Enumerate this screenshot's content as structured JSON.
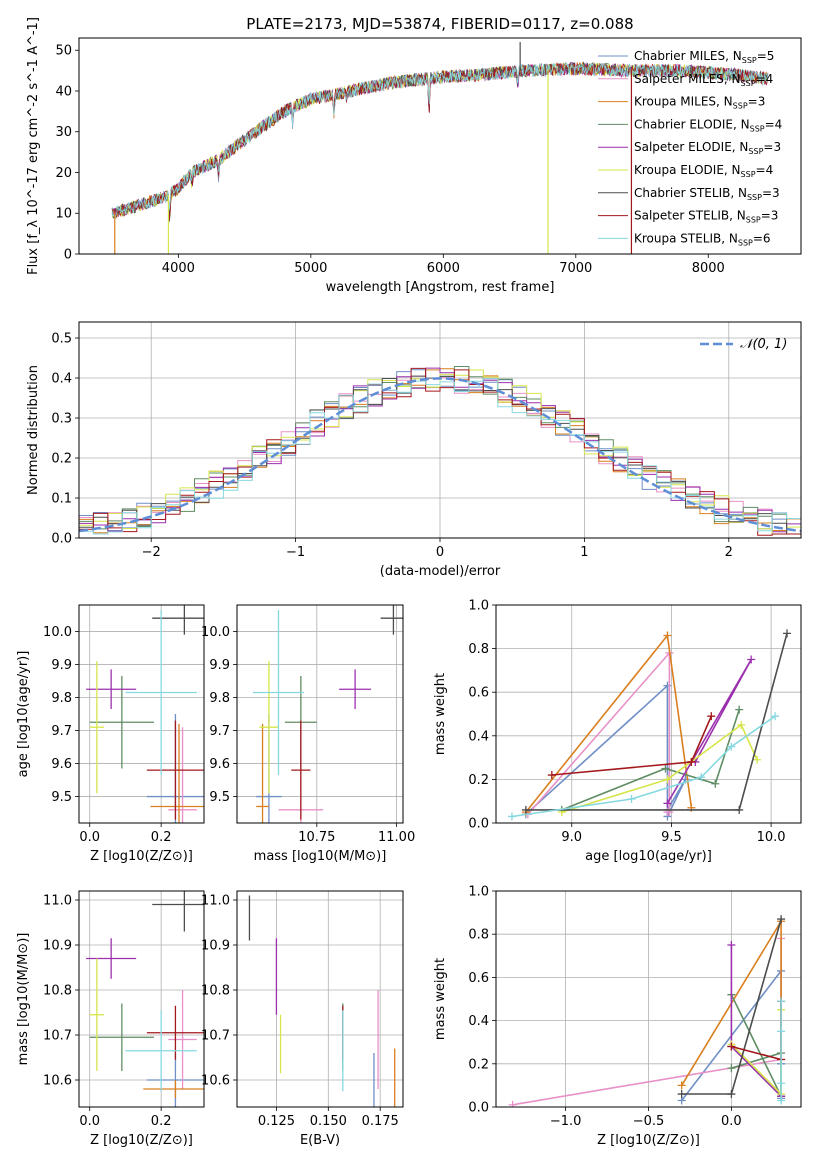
{
  "figure_title": "PLATE=2173, MJD=53874, FIBERID=0117, z=0.088",
  "models": [
    {
      "name": "Chabrier MILES",
      "nssp": "5",
      "color": "#6f8fc6"
    },
    {
      "name": "Salpeter MILES",
      "nssp": "4",
      "color": "#e891c8"
    },
    {
      "name": "Kroupa MILES",
      "nssp": "3",
      "color": "#d97f1e"
    },
    {
      "name": "Chabrier ELODIE",
      "nssp": "4",
      "color": "#5f8d63"
    },
    {
      "name": "Salpeter ELODIE",
      "nssp": "3",
      "color": "#9b2fae"
    },
    {
      "name": "Kroupa ELODIE",
      "nssp": "4",
      "color": "#d6e64a"
    },
    {
      "name": "Chabrier STELIB",
      "nssp": "3",
      "color": "#4d4d4d"
    },
    {
      "name": "Salpeter STELIB",
      "nssp": "3",
      "color": "#a3181c"
    },
    {
      "name": "Kroupa STELIB",
      "nssp": "6",
      "color": "#86d8e0"
    }
  ],
  "chart_data": [
    {
      "id": "spectrum",
      "type": "line",
      "xlabel": "wavelength [Angstrom, rest frame]",
      "ylabel": "Flux [f_λ 10^-17 erg cm^-2 s^-1 A^-1]",
      "xlim": [
        3250,
        8700
      ],
      "ylim": [
        0,
        53
      ],
      "xticks": [
        4000,
        5000,
        6000,
        7000,
        8000
      ],
      "yticks": [
        0,
        10,
        20,
        30,
        40,
        50
      ],
      "grid": false,
      "legend_position": "top-right",
      "continuum": {
        "x": [
          3500,
          3700,
          3900,
          4000,
          4100,
          4300,
          4500,
          4800,
          5000,
          5300,
          5600,
          6000,
          6300,
          6600,
          7000,
          7400,
          7800,
          8200,
          8450
        ],
        "y": [
          10,
          12,
          14,
          16,
          20,
          23,
          28,
          35,
          38,
          40,
          42,
          43.5,
          44,
          45,
          45.5,
          45,
          45,
          44,
          43
        ]
      },
      "absorption_lines": [
        {
          "x": 3934,
          "depth": 6
        },
        {
          "x": 4102,
          "depth": 3
        },
        {
          "x": 4304,
          "depth": 4
        },
        {
          "x": 4862,
          "depth": 4
        },
        {
          "x": 5175,
          "depth": 5
        },
        {
          "x": 5270,
          "depth": 2
        },
        {
          "x": 5892,
          "depth": 8
        },
        {
          "x": 6563,
          "depth": 3
        }
      ],
      "spikes": [
        {
          "model": 5,
          "x": 3925,
          "to": 0
        },
        {
          "model": 5,
          "x": 6790,
          "to": 0
        },
        {
          "model": 7,
          "x": 7420,
          "to": 0
        },
        {
          "model": 2,
          "x": 3520,
          "to": 0
        },
        {
          "model": 6,
          "x": 6580,
          "to": 52
        }
      ]
    },
    {
      "id": "residuals",
      "type": "histogram",
      "xlabel": "(data-model)/error",
      "ylabel": "Normed distribution",
      "xlim": [
        -2.5,
        2.5
      ],
      "ylim": [
        0,
        0.54
      ],
      "xticks": [
        -2,
        -1,
        0,
        1,
        2
      ],
      "yticks": [
        0.0,
        0.1,
        0.2,
        0.3,
        0.4,
        0.5
      ],
      "grid": true,
      "legend": "N(0,1)",
      "legend_position": "top-right",
      "bin_width": 0.1,
      "reference_curve": {
        "name": "N(0,1)",
        "mean": 0,
        "sigma": 1,
        "color": "#5e8ed6"
      }
    },
    {
      "id": "age-vs-Z",
      "type": "errorbar",
      "xlabel": "Z [log10(Z/Z⊙)]",
      "ylabel": "age [log10(age/yr)]",
      "xlim": [
        -0.03,
        0.32
      ],
      "ylim": [
        9.42,
        10.08
      ],
      "xticks": [
        0.0,
        0.2
      ],
      "yticks": [
        9.5,
        9.6,
        9.7,
        9.8,
        9.9,
        10.0
      ],
      "grid": true,
      "points": [
        {
          "model": 0,
          "x": 0.24,
          "xerr": 0.08,
          "y": 9.5,
          "yerr": 0.25
        },
        {
          "model": 1,
          "x": 0.26,
          "xerr": 0.04,
          "y": 9.46,
          "yerr": 0.25
        },
        {
          "model": 2,
          "x": 0.25,
          "xerr": 0.08,
          "y": 9.47,
          "yerr": 0.25
        },
        {
          "model": 3,
          "x": 0.09,
          "xerr": 0.09,
          "y": 9.725,
          "yerr": 0.14
        },
        {
          "model": 4,
          "x": 0.06,
          "xerr": 0.07,
          "y": 9.825,
          "yerr": 0.06
        },
        {
          "model": 5,
          "x": 0.02,
          "xerr": 0.02,
          "y": 9.71,
          "yerr": 0.2
        },
        {
          "model": 6,
          "x": 0.265,
          "xerr": 0.09,
          "y": 10.04,
          "yerr": 0.05
        },
        {
          "model": 7,
          "x": 0.24,
          "xerr": 0.08,
          "y": 9.58,
          "yerr": 0.15
        },
        {
          "model": 8,
          "x": 0.2,
          "xerr": 0.1,
          "y": 9.815,
          "yerr": 0.25
        }
      ]
    },
    {
      "id": "age-vs-mass",
      "type": "errorbar",
      "xlabel": "mass [log10(M/M⊙)]",
      "ylabel": "",
      "xlim": [
        10.5,
        11.02
      ],
      "ylim": [
        9.42,
        10.08
      ],
      "xticks": [
        10.75,
        11.0
      ],
      "yticks": [
        9.5,
        9.6,
        9.7,
        9.8,
        9.9,
        10.0
      ],
      "grid": true,
      "points": [
        {
          "model": 0,
          "x": 10.6,
          "xerr": 0.04,
          "y": 9.5,
          "yerr": 0.25
        },
        {
          "model": 1,
          "x": 10.7,
          "xerr": 0.07,
          "y": 9.46,
          "yerr": 0.25
        },
        {
          "model": 2,
          "x": 10.58,
          "xerr": 0.02,
          "y": 9.47,
          "yerr": 0.25
        },
        {
          "model": 3,
          "x": 10.7,
          "xerr": 0.05,
          "y": 9.725,
          "yerr": 0.14
        },
        {
          "model": 4,
          "x": 10.87,
          "xerr": 0.05,
          "y": 9.825,
          "yerr": 0.06
        },
        {
          "model": 5,
          "x": 10.6,
          "xerr": 0.03,
          "y": 9.71,
          "yerr": 0.2
        },
        {
          "model": 6,
          "x": 10.99,
          "xerr": 0.04,
          "y": 10.04,
          "yerr": 0.05
        },
        {
          "model": 7,
          "x": 10.7,
          "xerr": 0.03,
          "y": 9.58,
          "yerr": 0.15
        },
        {
          "model": 8,
          "x": 10.63,
          "xerr": 0.08,
          "y": 9.815,
          "yerr": 0.25
        }
      ]
    },
    {
      "id": "weight-vs-age",
      "type": "line",
      "xlabel": "age [log10(age/yr)]",
      "ylabel": "mass weight",
      "xlim": [
        8.62,
        10.15
      ],
      "ylim": [
        0,
        1.0
      ],
      "xticks": [
        9.0,
        9.5,
        10.0
      ],
      "yticks": [
        0.0,
        0.2,
        0.4,
        0.6,
        0.8,
        1.0
      ],
      "grid": true,
      "series": [
        {
          "model": 0,
          "x": [
            8.77,
            9.48,
            9.48,
            9.57,
            9.48
          ],
          "y": [
            0.04,
            0.63,
            0.03,
            0.2,
            0.06
          ]
        },
        {
          "model": 1,
          "x": [
            8.78,
            9.49,
            9.49,
            9.48
          ],
          "y": [
            0.04,
            0.78,
            0.05,
            0.05
          ]
        },
        {
          "model": 2,
          "x": [
            8.77,
            9.48,
            9.6
          ],
          "y": [
            0.05,
            0.86,
            0.07
          ]
        },
        {
          "model": 3,
          "x": [
            8.95,
            9.47,
            9.72,
            9.84
          ],
          "y": [
            0.06,
            0.25,
            0.18,
            0.52
          ]
        },
        {
          "model": 4,
          "x": [
            9.48,
            9.9,
            9.62
          ],
          "y": [
            0.09,
            0.75,
            0.28
          ]
        },
        {
          "model": 5,
          "x": [
            8.95,
            9.48,
            9.85,
            9.93
          ],
          "y": [
            0.05,
            0.2,
            0.45,
            0.29
          ]
        },
        {
          "model": 6,
          "x": [
            8.77,
            9.84,
            10.08
          ],
          "y": [
            0.06,
            0.06,
            0.87
          ]
        },
        {
          "model": 7,
          "x": [
            8.9,
            9.6,
            9.7,
            9.6
          ],
          "y": [
            0.22,
            0.28,
            0.49,
            0.28
          ]
        },
        {
          "model": 8,
          "x": [
            8.7,
            9.3,
            9.65,
            9.8,
            10.02
          ],
          "y": [
            0.03,
            0.11,
            0.21,
            0.35,
            0.49
          ]
        }
      ]
    },
    {
      "id": "mass-vs-Z",
      "type": "errorbar",
      "xlabel": "Z [log10(Z/Z⊙)]",
      "ylabel": "mass [log10(M/M⊙)]",
      "xlim": [
        -0.03,
        0.32
      ],
      "ylim": [
        10.54,
        11.02
      ],
      "xticks": [
        0.0,
        0.2
      ],
      "yticks": [
        10.6,
        10.7,
        10.8,
        10.9,
        11.0
      ],
      "grid": true,
      "points": [
        {
          "model": 0,
          "x": 0.24,
          "xerr": 0.08,
          "y": 10.6,
          "yerr": 0.06
        },
        {
          "model": 1,
          "x": 0.26,
          "xerr": 0.04,
          "y": 10.69,
          "yerr": 0.11
        },
        {
          "model": 2,
          "x": 0.24,
          "xerr": 0.09,
          "y": 10.58,
          "yerr": 0.02
        },
        {
          "model": 3,
          "x": 0.09,
          "xerr": 0.09,
          "y": 10.695,
          "yerr": 0.075
        },
        {
          "model": 4,
          "x": 0.06,
          "xerr": 0.07,
          "y": 10.87,
          "yerr": 0.045
        },
        {
          "model": 5,
          "x": 0.02,
          "xerr": 0.02,
          "y": 10.745,
          "yerr": 0.125
        },
        {
          "model": 6,
          "x": 0.265,
          "xerr": 0.09,
          "y": 10.99,
          "yerr": 0.06
        },
        {
          "model": 7,
          "x": 0.24,
          "xerr": 0.08,
          "y": 10.705,
          "yerr": 0.06
        },
        {
          "model": 8,
          "x": 0.2,
          "xerr": 0.1,
          "y": 10.665,
          "yerr": 0.09
        }
      ]
    },
    {
      "id": "mass-vs-ebv",
      "type": "errorbar",
      "xlabel": "E(B-V)",
      "ylabel": "",
      "xlim": [
        0.106,
        0.186
      ],
      "ylim": [
        10.54,
        11.02
      ],
      "xticks": [
        0.125,
        0.15,
        0.175
      ],
      "yticks": [
        10.6,
        10.7,
        10.8,
        10.9,
        11.0
      ],
      "grid": true,
      "points": [
        {
          "model": 0,
          "x": 0.172,
          "xerr": 0,
          "y": 10.6,
          "yerr": 0.06
        },
        {
          "model": 1,
          "x": 0.174,
          "xerr": 0,
          "y": 10.69,
          "yerr": 0.11
        },
        {
          "model": 2,
          "x": 0.182,
          "xerr": 0,
          "y": 10.6,
          "yerr": 0.07
        },
        {
          "model": 3,
          "x": 0.157,
          "xerr": 0,
          "y": 10.695,
          "yerr": 0.075
        },
        {
          "model": 4,
          "x": 0.125,
          "xerr": 0,
          "y": 10.83,
          "yerr": 0.085
        },
        {
          "model": 5,
          "x": 0.127,
          "xerr": 0,
          "y": 10.68,
          "yerr": 0.065
        },
        {
          "model": 6,
          "x": 0.112,
          "xerr": 0,
          "y": 10.96,
          "yerr": 0.05
        },
        {
          "model": 7,
          "x": 0.157,
          "xerr": 0,
          "y": 10.705,
          "yerr": 0.06
        },
        {
          "model": 8,
          "x": 0.157,
          "xerr": 0,
          "y": 10.665,
          "yerr": 0.09
        }
      ]
    },
    {
      "id": "weight-vs-Z",
      "type": "line",
      "xlabel": "Z [log10(Z/Z⊙)]",
      "ylabel": "mass weight",
      "xlim": [
        -1.42,
        0.42
      ],
      "ylim": [
        0,
        1.0
      ],
      "xticks": [
        -1.0,
        -0.5,
        0.0
      ],
      "yticks": [
        0.0,
        0.2,
        0.4,
        0.6,
        0.8,
        1.0
      ],
      "grid": true,
      "series": [
        {
          "model": 0,
          "x": [
            -0.3,
            0.3,
            0.3,
            0.3
          ],
          "y": [
            0.03,
            0.63,
            0.2,
            0.04
          ]
        },
        {
          "model": 1,
          "x": [
            -1.32,
            0.3,
            0.3,
            0.3
          ],
          "y": [
            0.01,
            0.22,
            0.78,
            0.05
          ]
        },
        {
          "model": 2,
          "x": [
            -0.3,
            0.3,
            0.3
          ],
          "y": [
            0.1,
            0.86,
            0.05
          ]
        },
        {
          "model": 3,
          "x": [
            0.0,
            0.3,
            0.3,
            0.0
          ],
          "y": [
            0.52,
            0.05,
            0.25,
            0.18
          ]
        },
        {
          "model": 4,
          "x": [
            0.0,
            0.0,
            0.3
          ],
          "y": [
            0.75,
            0.28,
            0.05
          ]
        },
        {
          "model": 5,
          "x": [
            0.0,
            0.3,
            0.3
          ],
          "y": [
            0.29,
            0.06,
            0.45
          ]
        },
        {
          "model": 6,
          "x": [
            -0.3,
            0.0,
            0.3
          ],
          "y": [
            0.06,
            0.06,
            0.87
          ]
        },
        {
          "model": 7,
          "x": [
            0.0,
            0.3,
            0.3
          ],
          "y": [
            0.28,
            0.22,
            0.49
          ]
        },
        {
          "model": 8,
          "x": [
            0.3,
            0.3,
            0.3,
            0.3
          ],
          "y": [
            0.03,
            0.11,
            0.35,
            0.49
          ]
        }
      ]
    }
  ]
}
